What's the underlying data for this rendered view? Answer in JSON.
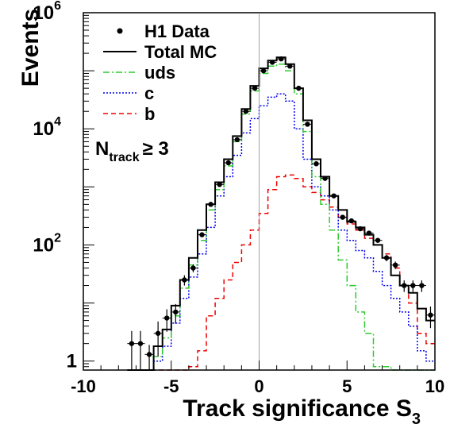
{
  "chart_data": {
    "type": "line",
    "title": "",
    "xlabel": "Track significance S",
    "xlabel_sub": "3",
    "ylabel": "Events",
    "xlim": [
      -10,
      10
    ],
    "ylim": [
      0.7,
      1000000
    ],
    "yscale": "log",
    "grid": false,
    "legend_position": "top-left",
    "x_ticks": [
      {
        "label": "-10",
        "value": -10
      },
      {
        "label": "-5",
        "value": -5
      },
      {
        "label": "0",
        "value": 0
      },
      {
        "label": "5",
        "value": 5
      },
      {
        "label": "10",
        "value": 10
      }
    ],
    "y_ticks": [
      {
        "label": "1",
        "value": 1
      },
      {
        "label": "10",
        "exp": "2",
        "value": 100
      },
      {
        "label": "10",
        "exp": "4",
        "value": 10000
      },
      {
        "label": "10",
        "exp": "6",
        "value": 1000000
      }
    ],
    "annotation": {
      "main": "N",
      "sub": "track",
      "rest": "≥ 3"
    },
    "bin_edges": [
      -7.5,
      -7.0,
      -6.5,
      -6.0,
      -5.5,
      -5.0,
      -4.5,
      -4.0,
      -3.5,
      -3.0,
      -2.5,
      -2.0,
      -1.5,
      -1.0,
      -0.5,
      0.0,
      0.5,
      1.0,
      1.5,
      2.0,
      2.5,
      3.0,
      3.5,
      4.0,
      4.5,
      5.0,
      5.5,
      6.0,
      6.5,
      7.0,
      7.5,
      8.0,
      8.5,
      9.0,
      9.5,
      10.0
    ],
    "series": [
      {
        "name": "H1 Data",
        "style": "points",
        "color": "#000000",
        "x": [
          -7.25,
          -6.75,
          -6.25,
          -5.75,
          -5.25,
          -4.75,
          -4.25,
          -3.75,
          -3.25,
          -2.75,
          -2.25,
          -1.75,
          -1.25,
          -0.75,
          -0.25,
          0.25,
          0.75,
          1.25,
          1.75,
          2.25,
          2.75,
          3.25,
          3.75,
          4.25,
          4.75,
          5.25,
          5.75,
          6.25,
          6.75,
          7.25,
          7.75,
          8.25,
          8.75,
          9.25,
          9.75
        ],
        "y": [
          2.0,
          2.0,
          1.3,
          3.0,
          5.5,
          7.0,
          25,
          40,
          150,
          500,
          1100,
          2600,
          6500,
          20000,
          50000,
          100000,
          140000,
          160000,
          120000,
          50000,
          12000,
          2500,
          1400,
          700,
          300,
          260,
          190,
          160,
          120,
          60,
          45,
          20,
          20,
          20,
          6.2
        ],
        "err_lo": [
          1.3,
          1.3,
          0.6,
          1.8,
          2.3,
          2.6,
          5,
          6.3,
          12,
          22,
          33,
          51,
          80,
          141,
          224,
          316,
          374,
          400,
          346,
          224,
          110,
          50,
          37,
          26,
          17,
          16,
          14,
          13,
          11,
          7.7,
          6.7,
          4.5,
          4.5,
          4.5,
          2.5
        ],
        "err_hi": [
          1.3,
          1.3,
          0.6,
          1.8,
          2.3,
          2.6,
          5,
          6.3,
          12,
          22,
          33,
          51,
          80,
          141,
          224,
          316,
          374,
          400,
          346,
          224,
          110,
          50,
          37,
          26,
          17,
          16,
          14,
          13,
          11,
          7.7,
          6.7,
          4.5,
          4.5,
          4.5,
          2.5
        ]
      },
      {
        "name": "Total MC",
        "style": "hist",
        "color": "#000000",
        "dash": "",
        "values": [
          0.7,
          0.7,
          0.7,
          1.8,
          3.5,
          9,
          25,
          60,
          180,
          500,
          1200,
          3000,
          7500,
          22000,
          55000,
          110000,
          150000,
          170000,
          130000,
          50000,
          14000,
          3000,
          1500,
          700,
          400,
          250,
          200,
          150,
          100,
          60,
          30,
          20,
          15,
          8,
          5
        ]
      },
      {
        "name": "uds",
        "style": "hist",
        "color": "#2ecc2e",
        "dash": "8,3,2,3",
        "values": [
          0.7,
          0.7,
          0.7,
          1.2,
          2.5,
          6,
          18,
          45,
          120,
          400,
          900,
          2300,
          6000,
          18000,
          45000,
          90000,
          120000,
          130000,
          100000,
          40000,
          9000,
          1500,
          500,
          180,
          55,
          20,
          7,
          3,
          0.8,
          0.8,
          0.6,
          0.6,
          0.5,
          0.5,
          0.5
        ]
      },
      {
        "name": "c",
        "style": "hist",
        "color": "#0000ee",
        "dash": "2,2",
        "values": [
          0.7,
          0.7,
          0.7,
          1.0,
          1.8,
          4.5,
          12,
          28,
          70,
          200,
          700,
          1500,
          3500,
          8500,
          15000,
          25000,
          35000,
          40000,
          30000,
          10000,
          3000,
          1000,
          700,
          400,
          180,
          120,
          80,
          60,
          35,
          20,
          12,
          7,
          4,
          1.5,
          1.0
        ]
      },
      {
        "name": "b",
        "style": "hist",
        "color": "#ee0000",
        "dash": "6,4",
        "values": [
          0.7,
          0.7,
          0.7,
          0.5,
          0.6,
          0.7,
          0.6,
          0.8,
          1.5,
          6,
          12,
          25,
          50,
          100,
          180,
          350,
          900,
          1500,
          1600,
          1400,
          1000,
          800,
          600,
          450,
          300,
          230,
          180,
          130,
          100,
          70,
          40,
          20,
          10,
          3,
          2
        ]
      }
    ]
  }
}
